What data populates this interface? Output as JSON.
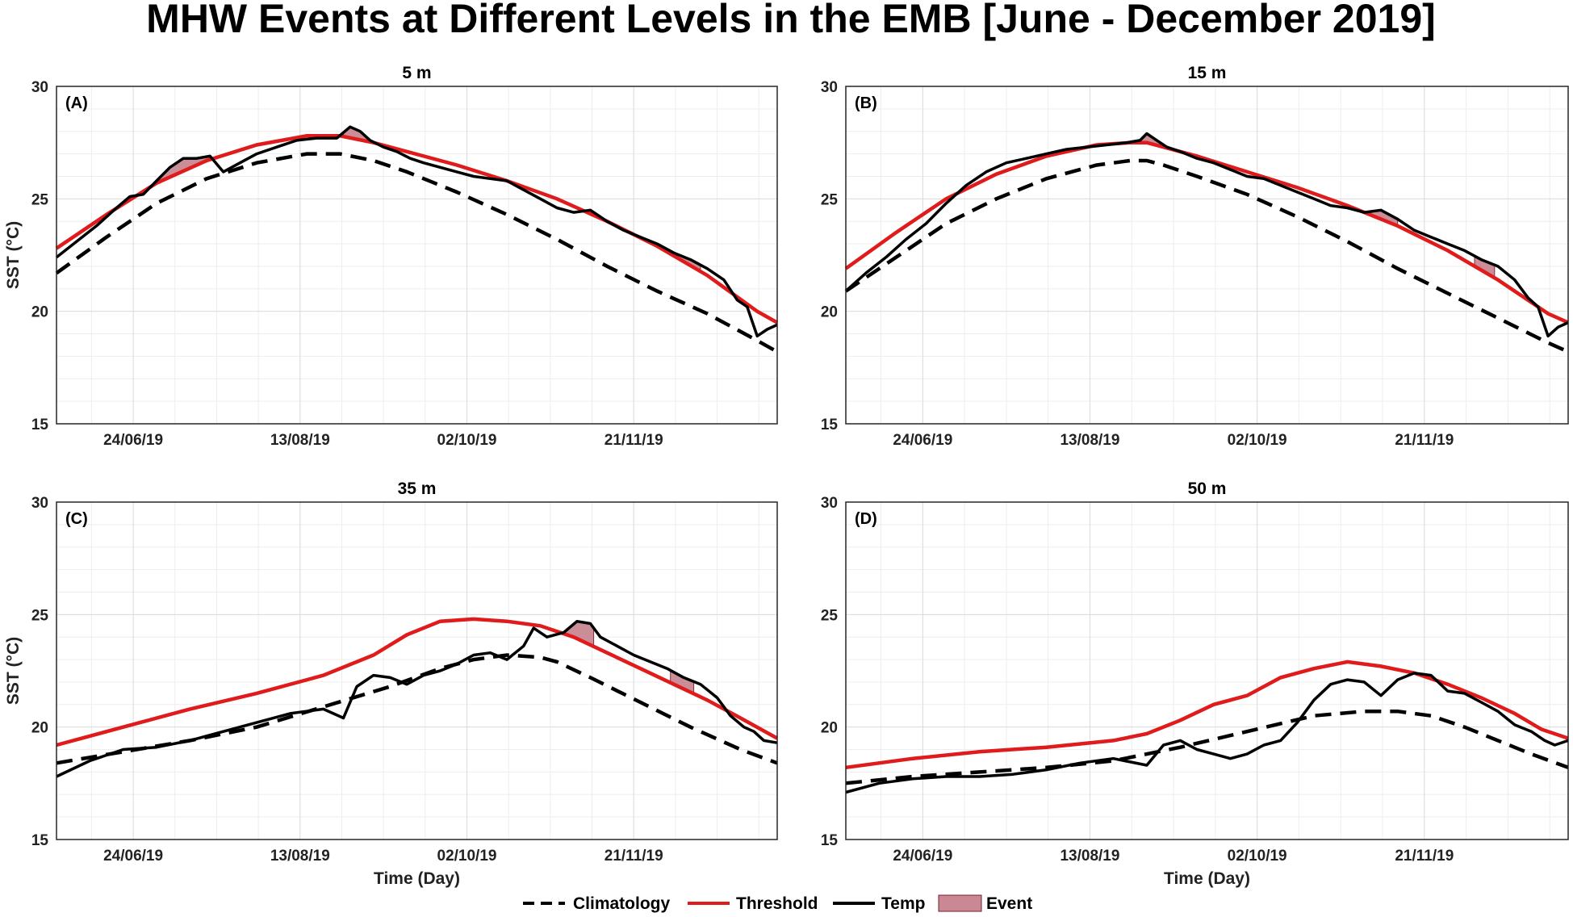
{
  "title": "MHW Events at Different Levels in the EMB [June - December 2019]",
  "colors": {
    "climatology": "#000000",
    "threshold": "#e01b1b",
    "temp": "#000000",
    "event_fill": "#c98893",
    "event_edge": "#7a1f2e"
  },
  "legend": {
    "climatology": "Climatology",
    "threshold": "Threshold",
    "temp": "Temp",
    "event": "Event"
  },
  "chart_data": [
    {
      "type": "line",
      "panel": "(A)",
      "title": "5 m",
      "xlabel": "",
      "ylabel": "SST (°C)",
      "ylim": [
        15,
        30
      ],
      "yticks": [
        15,
        20,
        25,
        30
      ],
      "xlim_day": [
        0,
        216
      ],
      "x_tick_days": [
        23,
        73,
        123,
        173
      ],
      "x_tick_labels": [
        "24/06/19",
        "13/08/19",
        "02/10/19",
        "21/11/19"
      ],
      "series": [
        {
          "name": "Climatology",
          "x": [
            0,
            15,
            30,
            45,
            60,
            75,
            85,
            95,
            105,
            120,
            135,
            150,
            165,
            180,
            195,
            210,
            216
          ],
          "values": [
            21.7,
            23.3,
            24.8,
            25.9,
            26.6,
            27.0,
            27.0,
            26.7,
            26.2,
            25.3,
            24.3,
            23.2,
            22.0,
            20.9,
            19.9,
            18.7,
            18.2
          ]
        },
        {
          "name": "Threshold",
          "x": [
            0,
            15,
            30,
            45,
            60,
            75,
            85,
            95,
            105,
            120,
            135,
            150,
            165,
            180,
            195,
            210,
            216
          ],
          "values": [
            22.8,
            24.3,
            25.7,
            26.7,
            27.4,
            27.8,
            27.8,
            27.5,
            27.1,
            26.5,
            25.8,
            25.0,
            24.0,
            22.9,
            21.6,
            20.0,
            19.5
          ]
        },
        {
          "name": "Temp",
          "x": [
            0,
            6,
            12,
            18,
            22,
            26,
            30,
            34,
            38,
            42,
            46,
            50,
            55,
            60,
            66,
            72,
            78,
            84,
            88,
            91,
            94,
            98,
            102,
            106,
            110,
            115,
            120,
            125,
            130,
            135,
            140,
            145,
            150,
            155,
            160,
            165,
            170,
            175,
            180,
            185,
            190,
            195,
            200,
            204,
            207,
            210,
            213,
            216
          ],
          "values": [
            22.4,
            23.1,
            23.8,
            24.6,
            25.1,
            25.2,
            25.8,
            26.4,
            26.8,
            26.8,
            26.9,
            26.2,
            26.6,
            27.0,
            27.3,
            27.6,
            27.7,
            27.7,
            28.2,
            28.0,
            27.6,
            27.3,
            27.1,
            26.8,
            26.6,
            26.4,
            26.2,
            26.0,
            25.9,
            25.8,
            25.4,
            25.0,
            24.6,
            24.4,
            24.5,
            24.0,
            23.6,
            23.3,
            23.0,
            22.6,
            22.3,
            21.9,
            21.4,
            20.5,
            20.2,
            18.9,
            19.2,
            19.4
          ]
        }
      ],
      "events": [
        {
          "start_day": 23,
          "end_day": 48
        },
        {
          "start_day": 86,
          "end_day": 95
        },
        {
          "start_day": 152,
          "end_day": 165
        },
        {
          "start_day": 186,
          "end_day": 193
        }
      ]
    },
    {
      "type": "line",
      "panel": "(B)",
      "title": "15 m",
      "xlabel": "",
      "ylabel": "",
      "ylim": [
        15,
        30
      ],
      "yticks": [
        15,
        20,
        25,
        30
      ],
      "xlim_day": [
        0,
        216
      ],
      "x_tick_days": [
        23,
        73,
        123,
        173
      ],
      "x_tick_labels": [
        "24/06/19",
        "13/08/19",
        "02/10/19",
        "21/11/19"
      ],
      "series": [
        {
          "name": "Climatology",
          "x": [
            0,
            15,
            30,
            45,
            60,
            75,
            85,
            90,
            95,
            105,
            120,
            135,
            150,
            165,
            180,
            195,
            210,
            216
          ],
          "values": [
            20.9,
            22.4,
            23.9,
            25.0,
            25.9,
            26.5,
            26.7,
            26.7,
            26.5,
            26.0,
            25.2,
            24.2,
            23.1,
            21.9,
            20.8,
            19.7,
            18.6,
            18.2
          ]
        },
        {
          "name": "Threshold",
          "x": [
            0,
            15,
            30,
            45,
            60,
            75,
            85,
            90,
            95,
            105,
            120,
            135,
            150,
            165,
            180,
            195,
            210,
            216
          ],
          "values": [
            21.9,
            23.5,
            25.0,
            26.1,
            26.9,
            27.4,
            27.5,
            27.5,
            27.3,
            26.9,
            26.2,
            25.5,
            24.7,
            23.8,
            22.7,
            21.4,
            19.9,
            19.5
          ]
        },
        {
          "name": "Temp",
          "x": [
            0,
            6,
            12,
            18,
            24,
            30,
            36,
            42,
            48,
            54,
            60,
            66,
            72,
            78,
            84,
            88,
            90,
            93,
            96,
            100,
            105,
            110,
            115,
            120,
            125,
            130,
            135,
            140,
            145,
            150,
            155,
            160,
            165,
            170,
            175,
            180,
            185,
            190,
            195,
            200,
            204,
            207,
            210,
            213,
            216
          ],
          "values": [
            20.9,
            21.7,
            22.4,
            23.2,
            23.9,
            24.8,
            25.6,
            26.2,
            26.6,
            26.8,
            27.0,
            27.2,
            27.3,
            27.4,
            27.5,
            27.6,
            27.9,
            27.6,
            27.3,
            27.1,
            26.8,
            26.6,
            26.3,
            26.0,
            25.9,
            25.6,
            25.3,
            25.0,
            24.7,
            24.6,
            24.4,
            24.5,
            24.1,
            23.6,
            23.3,
            23.0,
            22.7,
            22.3,
            22.0,
            21.4,
            20.6,
            20.2,
            18.9,
            19.3,
            19.5
          ]
        }
      ],
      "events": [
        {
          "start_day": 87,
          "end_day": 94
        },
        {
          "start_day": 157,
          "end_day": 165
        },
        {
          "start_day": 188,
          "end_day": 194
        }
      ]
    },
    {
      "type": "line",
      "panel": "(C)",
      "title": "35 m",
      "xlabel": "Time (Day)",
      "ylabel": "SST (°C)",
      "ylim": [
        15,
        30
      ],
      "yticks": [
        15,
        20,
        25,
        30
      ],
      "xlim_day": [
        0,
        216
      ],
      "x_tick_days": [
        23,
        73,
        123,
        173
      ],
      "x_tick_labels": [
        "24/06/19",
        "13/08/19",
        "02/10/19",
        "21/11/19"
      ],
      "series": [
        {
          "name": "Climatology",
          "x": [
            0,
            20,
            40,
            60,
            80,
            100,
            115,
            125,
            135,
            145,
            150,
            160,
            175,
            190,
            205,
            216
          ],
          "values": [
            18.4,
            18.9,
            19.4,
            20.0,
            20.9,
            21.8,
            22.6,
            23.0,
            23.2,
            23.1,
            22.9,
            22.2,
            21.1,
            20.0,
            19.0,
            18.4
          ]
        },
        {
          "name": "Threshold",
          "x": [
            0,
            20,
            40,
            60,
            80,
            95,
            105,
            115,
            125,
            135,
            145,
            155,
            165,
            175,
            185,
            195,
            205,
            216
          ],
          "values": [
            19.2,
            20.0,
            20.8,
            21.5,
            22.3,
            23.2,
            24.1,
            24.7,
            24.8,
            24.7,
            24.5,
            24.0,
            23.3,
            22.6,
            21.9,
            21.2,
            20.4,
            19.5
          ]
        },
        {
          "name": "Temp",
          "x": [
            0,
            10,
            20,
            30,
            40,
            50,
            60,
            70,
            80,
            86,
            90,
            95,
            100,
            105,
            110,
            115,
            120,
            125,
            130,
            135,
            140,
            143,
            147,
            152,
            156,
            160,
            163,
            168,
            173,
            178,
            183,
            188,
            193,
            198,
            202,
            206,
            209,
            212,
            216
          ],
          "values": [
            17.8,
            18.5,
            19.0,
            19.1,
            19.4,
            19.8,
            20.2,
            20.6,
            20.8,
            20.4,
            21.8,
            22.3,
            22.2,
            21.9,
            22.3,
            22.5,
            22.8,
            23.2,
            23.3,
            23.0,
            23.6,
            24.4,
            24.0,
            24.2,
            24.7,
            24.6,
            24.0,
            23.6,
            23.2,
            22.9,
            22.6,
            22.2,
            21.9,
            21.3,
            20.5,
            20.0,
            19.8,
            19.4,
            19.3
          ]
        }
      ],
      "events": [
        {
          "start_day": 151,
          "end_day": 161
        },
        {
          "start_day": 184,
          "end_day": 191
        }
      ]
    },
    {
      "type": "line",
      "panel": "(D)",
      "title": "50 m",
      "xlabel": "Time (Day)",
      "ylabel": "",
      "ylim": [
        15,
        30
      ],
      "yticks": [
        15,
        20,
        25,
        30
      ],
      "xlim_day": [
        0,
        216
      ],
      "x_tick_days": [
        23,
        73,
        123,
        173
      ],
      "x_tick_labels": [
        "24/06/19",
        "13/08/19",
        "02/10/19",
        "21/11/19"
      ],
      "series": [
        {
          "name": "Climatology",
          "x": [
            0,
            20,
            40,
            60,
            80,
            100,
            120,
            140,
            155,
            165,
            175,
            185,
            195,
            205,
            216
          ],
          "values": [
            17.5,
            17.8,
            18.0,
            18.2,
            18.5,
            19.1,
            19.8,
            20.5,
            20.7,
            20.7,
            20.5,
            20.0,
            19.4,
            18.8,
            18.2
          ]
        },
        {
          "name": "Threshold",
          "x": [
            0,
            20,
            40,
            60,
            80,
            90,
            100,
            110,
            120,
            130,
            140,
            150,
            160,
            170,
            180,
            190,
            200,
            208,
            216
          ],
          "values": [
            18.2,
            18.6,
            18.9,
            19.1,
            19.4,
            19.7,
            20.3,
            21.0,
            21.4,
            22.2,
            22.6,
            22.9,
            22.7,
            22.4,
            21.9,
            21.3,
            20.6,
            19.9,
            19.5
          ]
        },
        {
          "name": "Temp",
          "x": [
            0,
            10,
            20,
            30,
            40,
            50,
            60,
            70,
            80,
            90,
            95,
            100,
            105,
            110,
            115,
            120,
            125,
            130,
            135,
            140,
            145,
            150,
            155,
            160,
            165,
            170,
            175,
            180,
            185,
            190,
            195,
            200,
            205,
            209,
            212,
            216
          ],
          "values": [
            17.1,
            17.5,
            17.7,
            17.8,
            17.8,
            17.9,
            18.1,
            18.4,
            18.6,
            18.3,
            19.2,
            19.4,
            19.0,
            18.8,
            18.6,
            18.8,
            19.2,
            19.4,
            20.2,
            21.2,
            21.9,
            22.1,
            22.0,
            21.4,
            22.1,
            22.4,
            22.3,
            21.6,
            21.5,
            21.1,
            20.7,
            20.1,
            19.8,
            19.4,
            19.2,
            19.4
          ]
        }
      ],
      "events": []
    }
  ]
}
